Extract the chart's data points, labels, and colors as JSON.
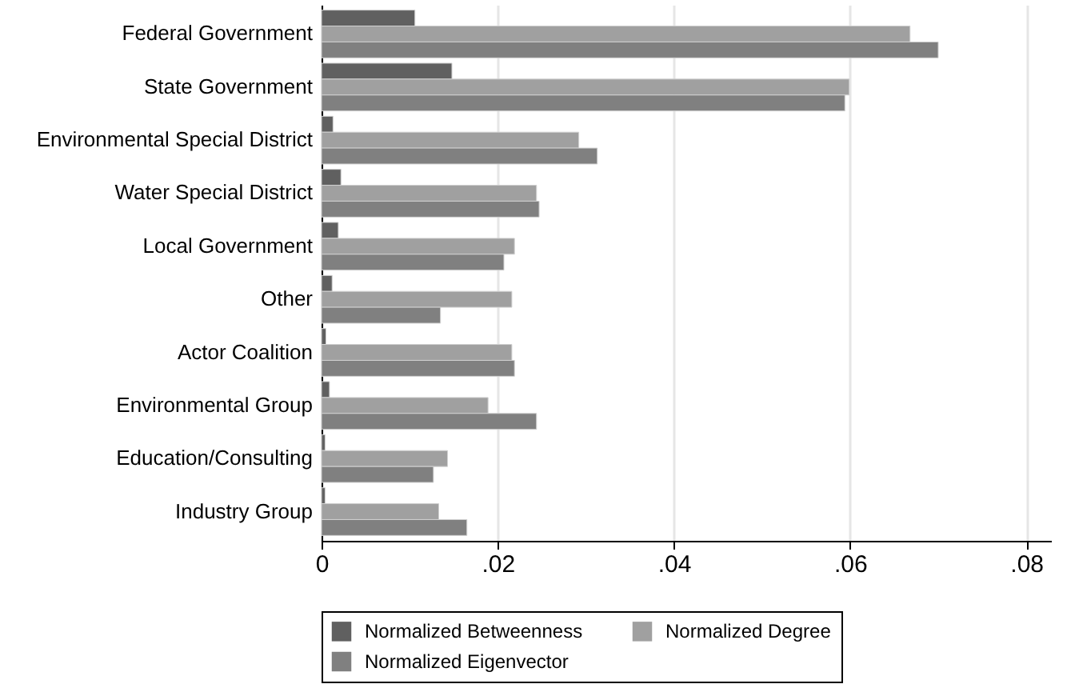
{
  "chart_data": {
    "type": "bar",
    "orientation": "horizontal",
    "categories": [
      "Federal Government",
      "State Government",
      "Environmental Special District",
      "Water Special District",
      "Local Government",
      "Other",
      "Actor Coalition",
      "Environmental Group",
      "Education/Consulting",
      "Industry Group"
    ],
    "series": [
      {
        "name": "Normalized Betweenness",
        "color": "#606060",
        "values": [
          0.0106,
          0.0148,
          0.0013,
          0.0022,
          0.0019,
          0.0012,
          0.0005,
          0.0009,
          0.0004,
          0.0004
        ]
      },
      {
        "name": "Normalized Degree",
        "color": "#a0a0a0",
        "values": [
          0.0668,
          0.0599,
          0.0292,
          0.0244,
          0.0219,
          0.0216,
          0.0216,
          0.0189,
          0.0143,
          0.0133
        ]
      },
      {
        "name": "Normalized Eigenvector",
        "color": "#808080",
        "values": [
          0.07,
          0.0594,
          0.0313,
          0.0247,
          0.0207,
          0.0135,
          0.0219,
          0.0244,
          0.0127,
          0.0165
        ]
      }
    ],
    "xlim": [
      0,
      0.0828
    ],
    "xticks": [
      0,
      {
        "value": 0.02,
        "label": ".02"
      },
      {
        "value": 0.04,
        "label": ".04"
      },
      {
        "value": 0.06,
        "label": ".06"
      },
      {
        "value": 0.08,
        "label": ".08"
      }
    ],
    "grid": "x",
    "legend": "bottom"
  }
}
